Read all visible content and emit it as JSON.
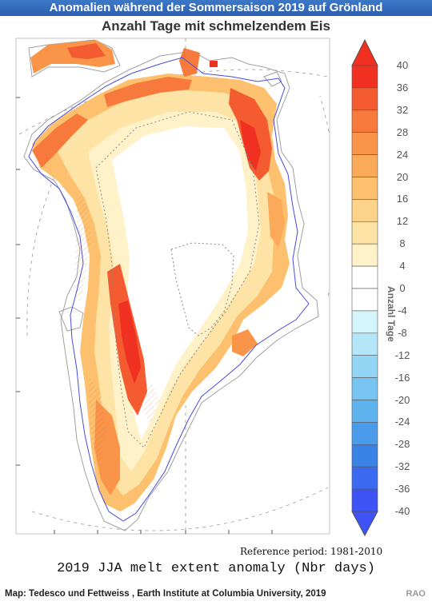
{
  "banner": {
    "title": "Anomalien während der Sommersaison 2019 auf Grönland"
  },
  "map": {
    "title": "Anzahl Tage mit schmelzendem Eis",
    "reference": "Reference period: 1981-2010",
    "caption": "2019 JJA melt extent anomaly (Nbr days)"
  },
  "colorbar": {
    "axis_title": "Anzahl Tage",
    "ticks": [
      "40",
      "36",
      "32",
      "28",
      "24",
      "20",
      "16",
      "12",
      "8",
      "4",
      "0",
      "-4",
      "-8",
      "-12",
      "-16",
      "-20",
      "-24",
      "-28",
      "-32",
      "-36",
      "-40"
    ],
    "colors_positive": [
      "#f03020",
      "#f45b30",
      "#f77a3c",
      "#f99448",
      "#fbaa5a",
      "#fcc06e",
      "#fdd389",
      "#fee3a6",
      "#fff1c8"
    ],
    "colors_negative": [
      "#d3f5fb",
      "#b3e6f8",
      "#93d5f5",
      "#78c4f1",
      "#5eb2ee",
      "#4a9cea",
      "#3a83e6",
      "#3b6af0",
      "#3d53f5"
    ],
    "zero_color": "#ffffff"
  },
  "footer": {
    "credit": "Map: Tedesco und Fettweiss , Earth Institute at Columbia University, 2019",
    "brand": "RAO"
  }
}
